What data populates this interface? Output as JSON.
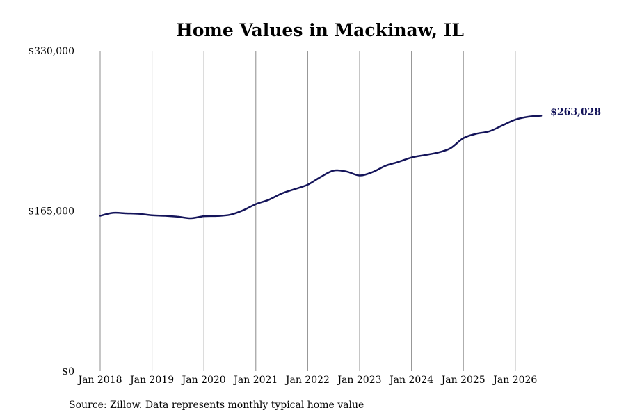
{
  "chart_data": {
    "type": "line",
    "title": "Home Values in Mackinaw, IL",
    "xlabel": "",
    "ylabel": "",
    "ylim": [
      0,
      330000
    ],
    "xlim": [
      "2018-01",
      "2026-07"
    ],
    "y_tick_labels": [
      "$0",
      "$165,000",
      "$330,000"
    ],
    "x_tick_labels": [
      "Jan 2018",
      "Jan 2019",
      "Jan 2020",
      "Jan 2021",
      "Jan 2022",
      "Jan 2023",
      "Jan 2024",
      "Jan 2025",
      "Jan 2026"
    ],
    "grid": "vertical",
    "end_label": "$263,028",
    "line_color": "#14145a",
    "series": [
      {
        "values": [
          {
            "x": "2018-01",
            "y": 160000
          },
          {
            "x": "2018-04",
            "y": 163000
          },
          {
            "x": "2018-07",
            "y": 162500
          },
          {
            "x": "2018-10",
            "y": 162000
          },
          {
            "x": "2019-01",
            "y": 160500
          },
          {
            "x": "2019-04",
            "y": 160000
          },
          {
            "x": "2019-07",
            "y": 159000
          },
          {
            "x": "2019-10",
            "y": 157500
          },
          {
            "x": "2020-01",
            "y": 159500
          },
          {
            "x": "2020-04",
            "y": 159800
          },
          {
            "x": "2020-07",
            "y": 161000
          },
          {
            "x": "2020-10",
            "y": 165500
          },
          {
            "x": "2021-01",
            "y": 172000
          },
          {
            "x": "2021-04",
            "y": 176500
          },
          {
            "x": "2021-07",
            "y": 183000
          },
          {
            "x": "2021-10",
            "y": 187500
          },
          {
            "x": "2022-01",
            "y": 192000
          },
          {
            "x": "2022-04",
            "y": 200000
          },
          {
            "x": "2022-07",
            "y": 206500
          },
          {
            "x": "2022-10",
            "y": 205500
          },
          {
            "x": "2023-01",
            "y": 201500
          },
          {
            "x": "2023-04",
            "y": 205000
          },
          {
            "x": "2023-07",
            "y": 211500
          },
          {
            "x": "2023-10",
            "y": 215500
          },
          {
            "x": "2024-01",
            "y": 220000
          },
          {
            "x": "2024-04",
            "y": 222500
          },
          {
            "x": "2024-07",
            "y": 225000
          },
          {
            "x": "2024-10",
            "y": 229500
          },
          {
            "x": "2025-01",
            "y": 240000
          },
          {
            "x": "2025-04",
            "y": 244500
          },
          {
            "x": "2025-07",
            "y": 247000
          },
          {
            "x": "2025-10",
            "y": 253000
          },
          {
            "x": "2026-01",
            "y": 259000
          },
          {
            "x": "2026-04",
            "y": 262000
          },
          {
            "x": "2026-07",
            "y": 263028
          }
        ]
      }
    ]
  },
  "footer": {
    "source": "Source: Zillow. Data represents monthly typical home value"
  }
}
